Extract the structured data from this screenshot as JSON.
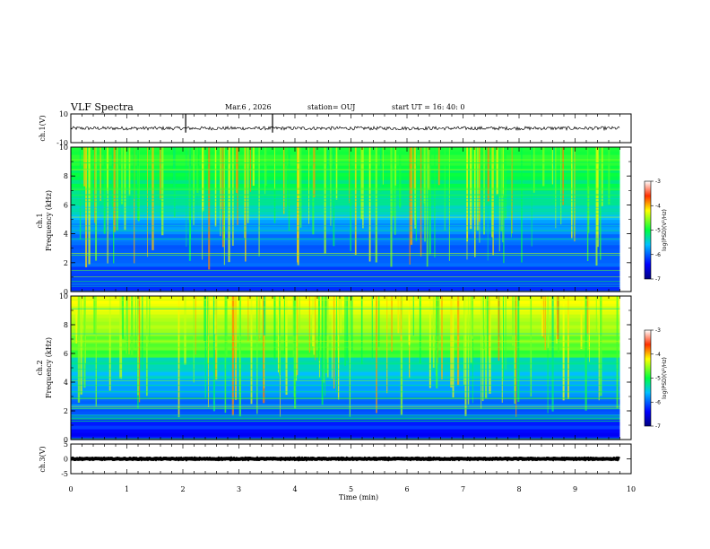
{
  "header": {
    "title": "VLF Spectra",
    "date": "Mar.6 , 2026",
    "station": "station= OUJ",
    "start_time": "start UT = 16: 40: 0"
  },
  "chart_data": {
    "type": "heatmap",
    "x_axis": {
      "label": "Time (min)",
      "range": [
        0,
        10
      ],
      "ticks": [
        "0",
        "1",
        "2",
        "3",
        "4",
        "5",
        "6",
        "7",
        "8",
        "9",
        "10"
      ]
    },
    "panels": [
      {
        "id": "ch1-waveform",
        "type": "line",
        "ylabel": "ch.1(V)",
        "yrange": [
          -10,
          10
        ],
        "yticks": [
          "10",
          "-10"
        ],
        "mean": 0,
        "data_end_min": 9.8
      },
      {
        "id": "ch1-spectrogram",
        "type": "heatmap",
        "ylabel_top": "ch.1",
        "ylabel": "Frequency (kHz)",
        "yrange": [
          0,
          10
        ],
        "yticks": [
          "0",
          "2",
          "4",
          "6",
          "8",
          "10"
        ],
        "data_end_min": 9.8
      },
      {
        "id": "ch2-spectrogram",
        "type": "heatmap",
        "ylabel_top": "ch.2",
        "ylabel": "Frequency (kHz)",
        "yrange": [
          0,
          10
        ],
        "yticks": [
          "0",
          "2",
          "4",
          "6",
          "8",
          "10"
        ],
        "data_end_min": 9.8
      },
      {
        "id": "ch3-waveform",
        "type": "line",
        "ylabel": "ch.3(V)",
        "yrange": [
          -5,
          5
        ],
        "yticks": [
          "5",
          "0",
          "-5"
        ],
        "mean": 0,
        "data_end_min": 9.8
      }
    ],
    "colorbar": {
      "label": "log(PSD)(V²/Hz)",
      "range": [
        -7,
        -3
      ],
      "ticks": [
        "-3",
        "-4",
        "-5",
        "-6",
        "-7"
      ]
    },
    "colors": {
      "low": "#000080",
      "mid": "#00ff40",
      "high": "#ff0000"
    }
  }
}
